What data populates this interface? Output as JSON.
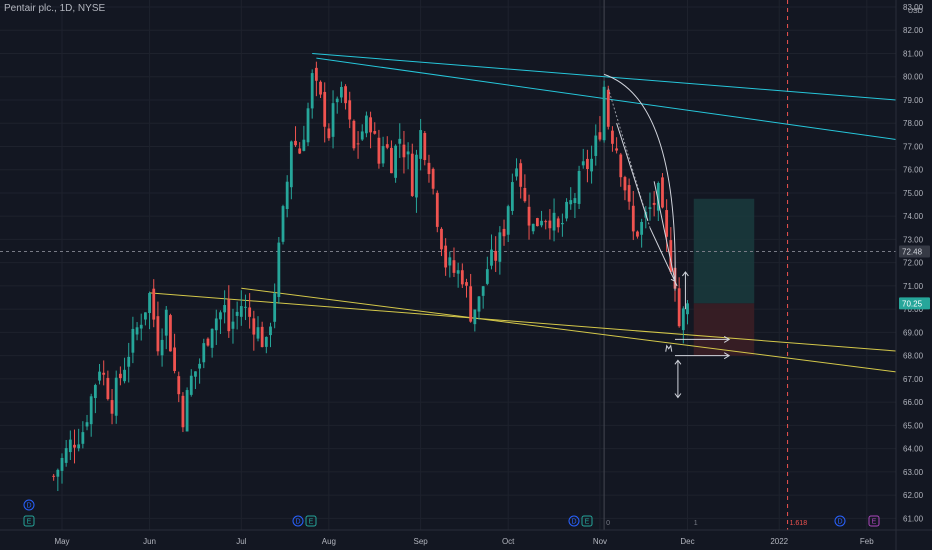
{
  "header": {
    "title": "Pentair plc., 1D, NYSE",
    "currency": "USD"
  },
  "colors": {
    "background": "#131722",
    "grid": "#1e222d",
    "up": "#26a69a",
    "down": "#ef5350",
    "trendline_cyan": "#26c6da",
    "trendline_yellow": "#d4c84a",
    "drawing_white": "#d1d4dc",
    "dashed_red": "#ef5350",
    "crosshair": "#787b86",
    "profit_zone": "#1a3b3d",
    "loss_zone": "#3d1f25"
  },
  "chart_data": {
    "type": "candlestick",
    "ylim": [
      60.5,
      83.3
    ],
    "y_ticks": [
      "61.00",
      "62.00",
      "63.00",
      "64.00",
      "65.00",
      "66.00",
      "67.00",
      "68.00",
      "69.00",
      "70.00",
      "71.00",
      "72.00",
      "73.00",
      "74.00",
      "75.00",
      "76.00",
      "77.00",
      "78.00",
      "79.00",
      "80.00",
      "81.00",
      "82.00",
      "83.00"
    ],
    "x_labels": [
      "May",
      "Jun",
      "Jul",
      "Aug",
      "Sep",
      "Oct",
      "Nov",
      "Dec",
      "2022",
      "Feb"
    ],
    "x_label_days": [
      0,
      21,
      43,
      64,
      86,
      107,
      129,
      150,
      172,
      193
    ],
    "crosshair_price": 72.48,
    "crosshair_label": "72.48",
    "last_price_label": "70.25",
    "fib_label": "1.618",
    "vline_labels": [
      "0",
      "1"
    ],
    "price_path": [
      [
        -2,
        62.8
      ],
      [
        2,
        64.2
      ],
      [
        5,
        64.8
      ],
      [
        9,
        67.6
      ],
      [
        12,
        66.0
      ],
      [
        16,
        68.2
      ],
      [
        21,
        70.6
      ],
      [
        23,
        68.6
      ],
      [
        25,
        69.8
      ],
      [
        27,
        67.3
      ],
      [
        29,
        65.4
      ],
      [
        31,
        67.0
      ],
      [
        33,
        67.7
      ],
      [
        36,
        69.5
      ],
      [
        39,
        70.0
      ],
      [
        40,
        69.1
      ],
      [
        43,
        70.2
      ],
      [
        46,
        69.4
      ],
      [
        48,
        68.7
      ],
      [
        49,
        68.3
      ],
      [
        51,
        70.9
      ],
      [
        52,
        72.5
      ],
      [
        54,
        75.5
      ],
      [
        55,
        77.4
      ],
      [
        57,
        76.8
      ],
      [
        59,
        78.6
      ],
      [
        60,
        79.9
      ],
      [
        62,
        78.9
      ],
      [
        64,
        77.6
      ],
      [
        65,
        78.4
      ],
      [
        66,
        79.3
      ],
      [
        68,
        78.8
      ],
      [
        70,
        76.8
      ],
      [
        72,
        77.7
      ],
      [
        74,
        78.1
      ],
      [
        76,
        76.3
      ],
      [
        77,
        77.3
      ],
      [
        79,
        76.4
      ],
      [
        81,
        77.4
      ],
      [
        83,
        76.4
      ],
      [
        84,
        75.4
      ],
      [
        86,
        77.6
      ],
      [
        88,
        76.3
      ],
      [
        90,
        74.0
      ],
      [
        92,
        72.0
      ],
      [
        94,
        71.6
      ],
      [
        96,
        71.5
      ],
      [
        98,
        69.9
      ],
      [
        100,
        70.3
      ],
      [
        102,
        71.8
      ],
      [
        104,
        72.3
      ],
      [
        106,
        73.5
      ],
      [
        107,
        74.6
      ],
      [
        109,
        76.6
      ],
      [
        111,
        74.5
      ],
      [
        113,
        73.5
      ],
      [
        115,
        74.1
      ],
      [
        117,
        74.0
      ],
      [
        119,
        73.3
      ],
      [
        121,
        74.1
      ],
      [
        123,
        74.9
      ],
      [
        125,
        76.0
      ],
      [
        127,
        76.4
      ],
      [
        129,
        77.8
      ],
      [
        130,
        79.6
      ],
      [
        131,
        78.0
      ],
      [
        133,
        77.0
      ],
      [
        135,
        75.3
      ],
      [
        137,
        73.2
      ],
      [
        139,
        73.6
      ],
      [
        141,
        74.3
      ],
      [
        143,
        74.9
      ],
      [
        145,
        72.8
      ],
      [
        147,
        71.3
      ],
      [
        148,
        69.3
      ],
      [
        150,
        70.25
      ]
    ]
  },
  "events": {
    "dividend_label": "D",
    "earnings_label": "E"
  }
}
